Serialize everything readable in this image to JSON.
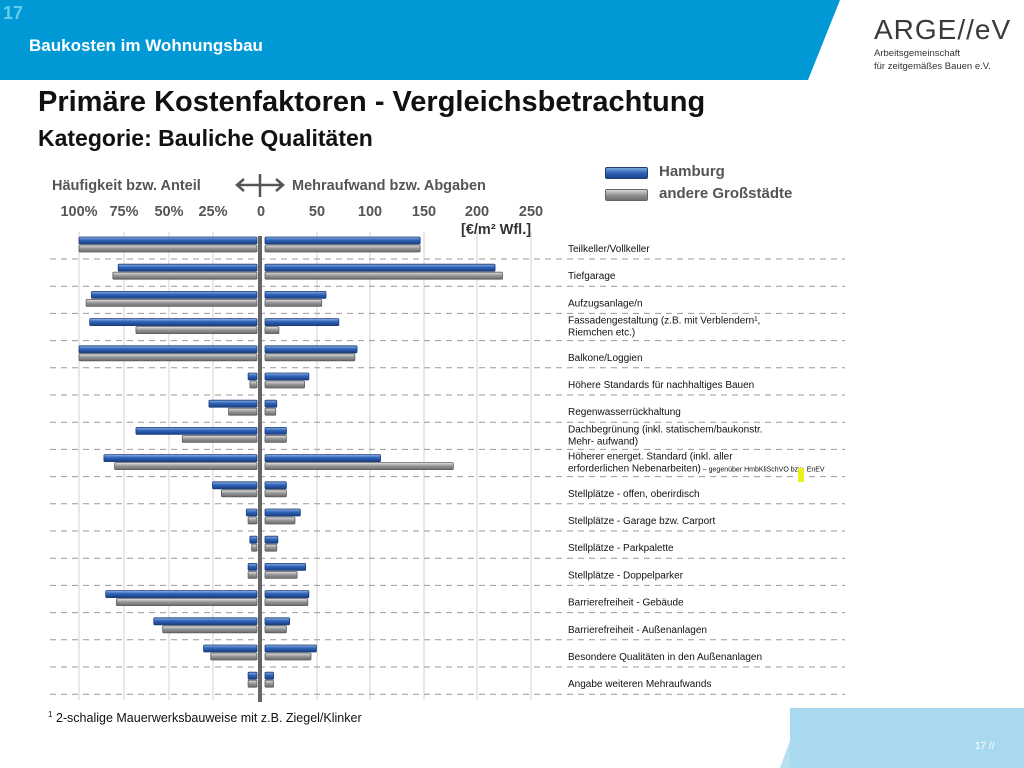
{
  "header": {
    "slide_number": "17",
    "banner_title": "Baukosten im Wohnungsbau",
    "logo_mark": "ARGE//eV",
    "logo_line1": "Arbeitsgemeinschaft",
    "logo_line2": "für zeitgemäßes Bauen e.V."
  },
  "title": "Primäre Kostenfaktoren - Vergleichsbetrachtung",
  "subtitle": "Kategorie: Bauliche Qualitäten",
  "legend": {
    "hamburg": "Hamburg",
    "andere": "andere Großstädte"
  },
  "left_header": "Häufigkeit bzw. Anteil",
  "right_header": "Mehraufwand bzw. Abgaben",
  "zero_label": "0",
  "left_ticks": [
    "100%",
    "75%",
    "50%",
    "25%"
  ],
  "right_ticks": [
    "50",
    "100",
    "150",
    "200",
    "250"
  ],
  "unit": "[€/m² Wfl.]",
  "footnote_mark": "1",
  "footnote": "2-schalige Mauerwerksbauweise mit z.B. Ziegel/Klinker",
  "page_number": "17 //",
  "colors": {
    "banner": "#0099d6",
    "hamburg": "#2a5bb0",
    "andere": "#8f8f8f",
    "highlight": "#e8f020"
  },
  "chart_data": {
    "type": "bar",
    "orientation": "horizontal",
    "left_axis": {
      "label": "Häufigkeit bzw. Anteil",
      "unit": "%",
      "range": [
        0,
        100
      ]
    },
    "right_axis": {
      "label": "Mehraufwand bzw. Abgaben",
      "unit": "€/m² Wfl.",
      "range": [
        0,
        250
      ]
    },
    "series_names": [
      "Hamburg",
      "andere Großstädte"
    ],
    "categories": [
      {
        "label": "Teilkeller/Vollkeller",
        "share_hamburg": 100,
        "share_andere": 100,
        "cost_hamburg": 145,
        "cost_andere": 145
      },
      {
        "label": "Tiefgarage",
        "share_hamburg": 78,
        "share_andere": 81,
        "cost_hamburg": 215,
        "cost_andere": 222
      },
      {
        "label": "Aufzugsanlage/n",
        "share_hamburg": 93,
        "share_andere": 96,
        "cost_hamburg": 57,
        "cost_andere": 53
      },
      {
        "label": "Fassadengestaltung (z.B. mit Verblendern¹, Riemchen etc.)",
        "share_hamburg": 94,
        "share_andere": 68,
        "cost_hamburg": 69,
        "cost_andere": 13
      },
      {
        "label": "Balkone/Loggien",
        "share_hamburg": 100,
        "share_andere": 100,
        "cost_hamburg": 86,
        "cost_andere": 84
      },
      {
        "label": "Höhere Standards für nachhaltiges Bauen",
        "share_hamburg": 5,
        "share_andere": 4,
        "cost_hamburg": 41,
        "cost_andere": 37
      },
      {
        "label": "Regenwasserrückhaltung",
        "share_hamburg": 27,
        "share_andere": 16,
        "cost_hamburg": 11,
        "cost_andere": 10
      },
      {
        "label": "Dachbegrünung (inkl. statischem/baukonstr. Mehr- aufwand)",
        "share_hamburg": 68,
        "share_andere": 42,
        "cost_hamburg": 20,
        "cost_andere": 20
      },
      {
        "label": "Höherer energet. Standard (inkl. aller erforderlichen Nebenarbeiten)",
        "label_note": "– gegenüber HmbKliSchVO bzw. EnEV",
        "share_hamburg": 86,
        "share_andere": 80,
        "cost_hamburg": 108,
        "cost_andere": 176
      },
      {
        "label": "Stellplätze - offen, oberirdisch",
        "share_hamburg": 25,
        "share_andere": 20,
        "cost_hamburg": 20,
        "cost_andere": 20
      },
      {
        "label": "Stellplätze - Garage bzw. Carport",
        "share_hamburg": 6,
        "share_andere": 5,
        "cost_hamburg": 33,
        "cost_andere": 28
      },
      {
        "label": "Stellplätze - Parkpalette",
        "share_hamburg": 4,
        "share_andere": 3,
        "cost_hamburg": 12,
        "cost_andere": 11
      },
      {
        "label": "Stellplätze - Doppelparker",
        "share_hamburg": 5,
        "share_andere": 5,
        "cost_hamburg": 38,
        "cost_andere": 30
      },
      {
        "label": "Barrierefreiheit - Gebäude",
        "share_hamburg": 85,
        "share_andere": 79,
        "cost_hamburg": 41,
        "cost_andere": 40
      },
      {
        "label": "Barrierefreiheit - Außenanlagen",
        "share_hamburg": 58,
        "share_andere": 53,
        "cost_hamburg": 23,
        "cost_andere": 20
      },
      {
        "label": "Besondere Qualitäten in den Außenanlagen",
        "share_hamburg": 30,
        "share_andere": 26,
        "cost_hamburg": 48,
        "cost_andere": 43
      },
      {
        "label": "Angabe weiteren Mehraufwands",
        "share_hamburg": 5,
        "share_andere": 5,
        "cost_hamburg": 8,
        "cost_andere": 8
      }
    ]
  }
}
